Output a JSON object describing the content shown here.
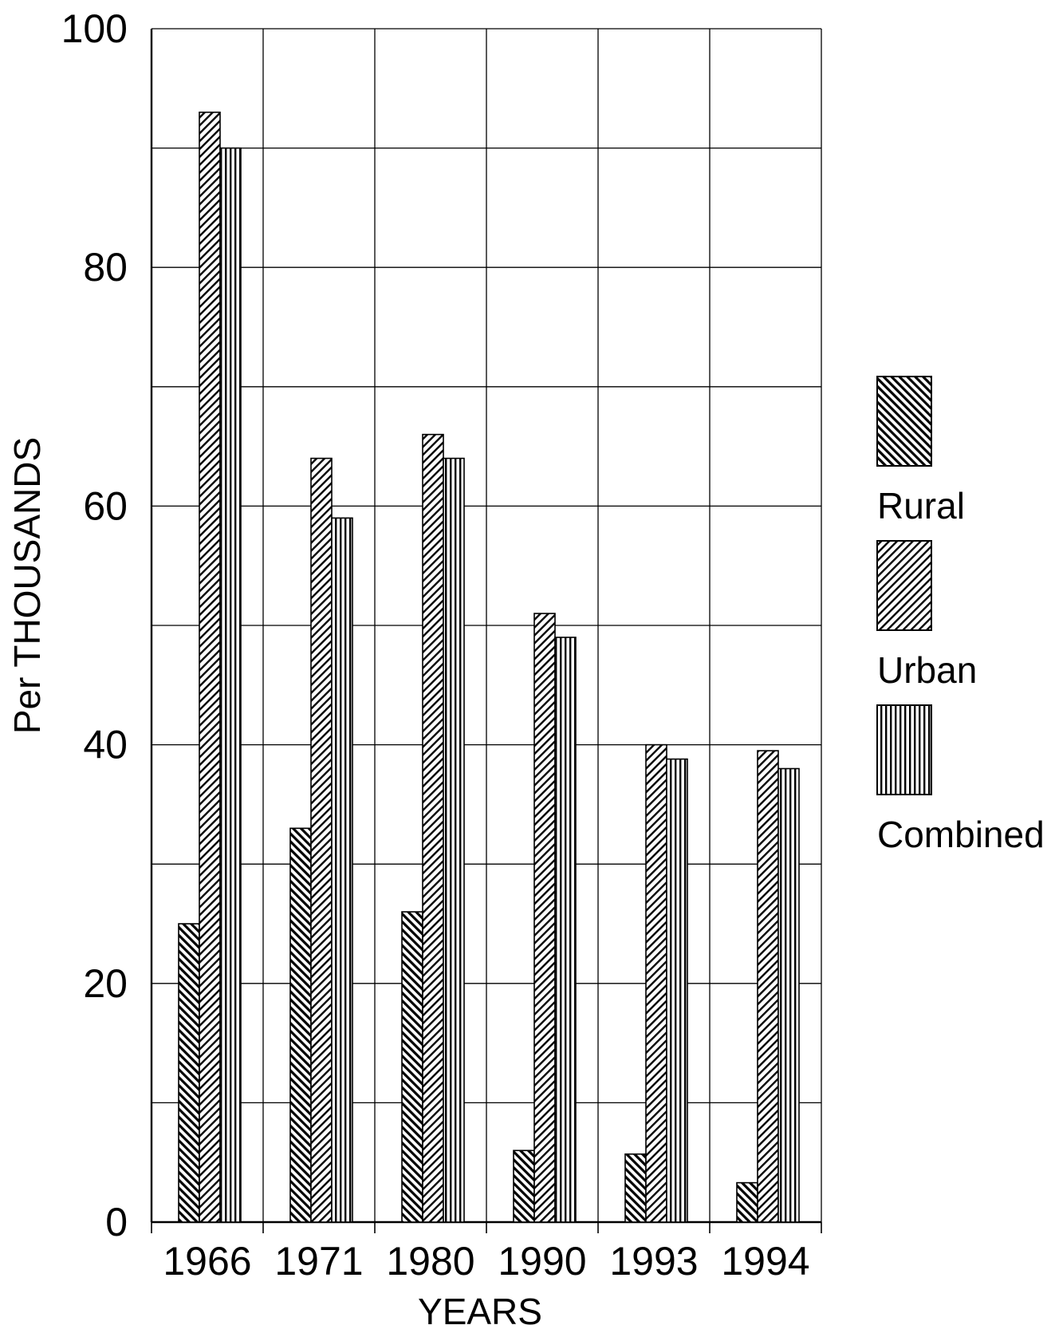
{
  "chart_data": {
    "type": "bar",
    "title": "",
    "xlabel": "YEARS",
    "ylabel": "Per THOUSANDS",
    "ylim": [
      0,
      100
    ],
    "y_ticks": [
      "0",
      "20",
      "40",
      "60",
      "80",
      "100"
    ],
    "categories": [
      "1966",
      "1971",
      "1980",
      "1990",
      "1993",
      "1994"
    ],
    "series": [
      {
        "name": "Rural",
        "values": [
          25,
          33,
          26,
          6,
          5.7,
          3.3
        ]
      },
      {
        "name": "Urban",
        "values": [
          93,
          64,
          66,
          51,
          40,
          39.5
        ]
      },
      {
        "name": "Combined",
        "values": [
          90,
          59,
          64,
          49,
          38.8,
          38
        ]
      }
    ],
    "grid": true,
    "legend_position": "right"
  }
}
